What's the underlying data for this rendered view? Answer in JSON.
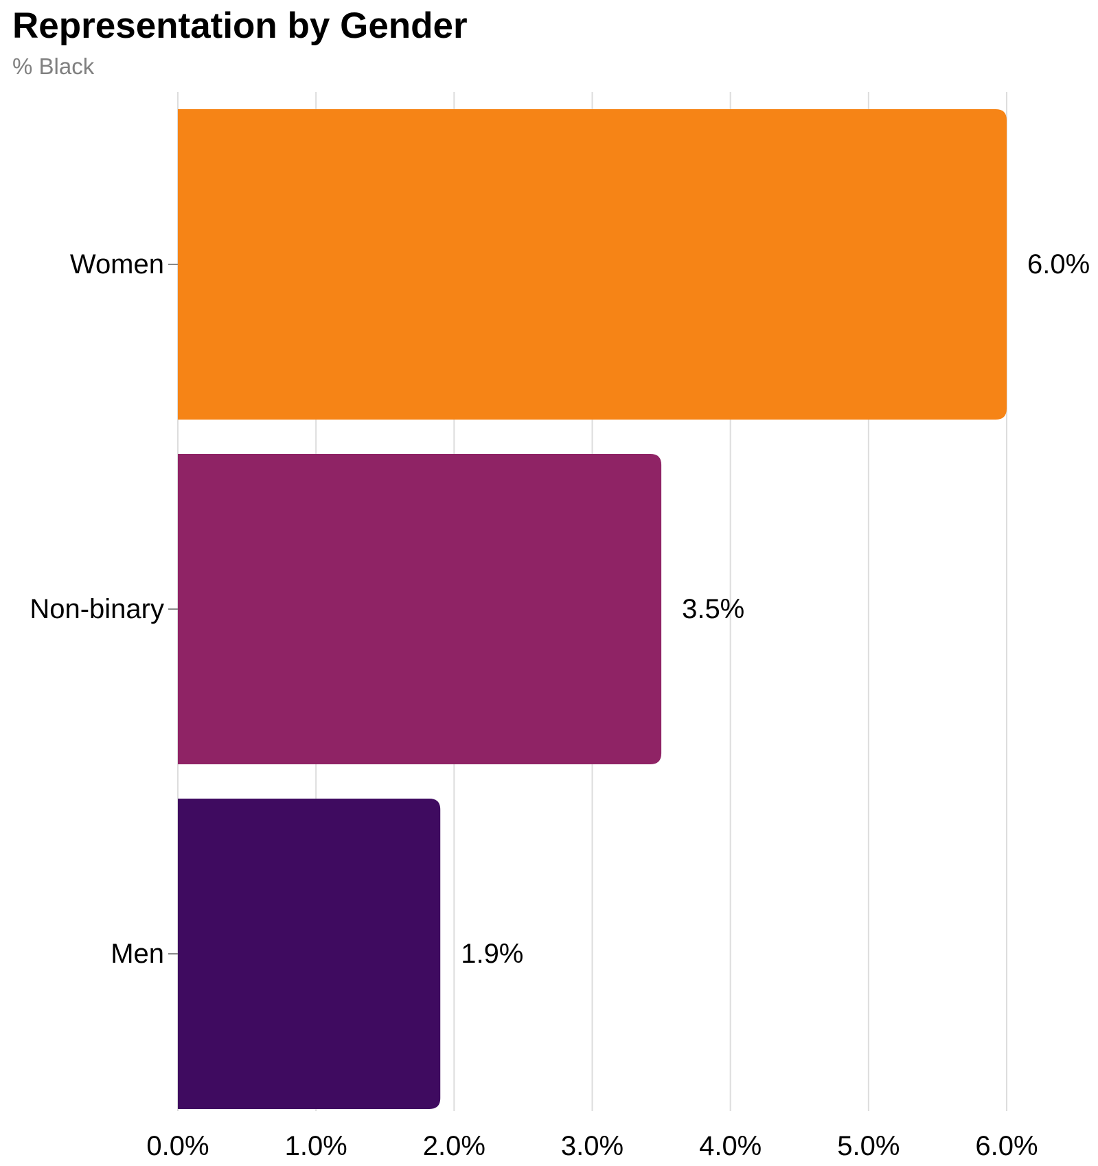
{
  "chart_data": {
    "type": "bar",
    "orientation": "horizontal",
    "title": "Representation by Gender",
    "subtitle": "% Black",
    "categories": [
      "Women",
      "Non-binary",
      "Men"
    ],
    "values": [
      6.0,
      3.5,
      1.9
    ],
    "value_labels": [
      "6.0%",
      "3.5%",
      "1.9%"
    ],
    "colors": [
      "#F68416",
      "#8F2365",
      "#3F0B60"
    ],
    "xlim": [
      0,
      6
    ],
    "x_ticks": [
      0,
      1,
      2,
      3,
      4,
      5,
      6
    ],
    "x_tick_labels": [
      "0.0%",
      "1.0%",
      "2.0%",
      "3.0%",
      "4.0%",
      "5.0%",
      "6.0%"
    ],
    "grid": true,
    "gridline_color": "#DDDDDD",
    "xlabel": "",
    "ylabel": ""
  }
}
